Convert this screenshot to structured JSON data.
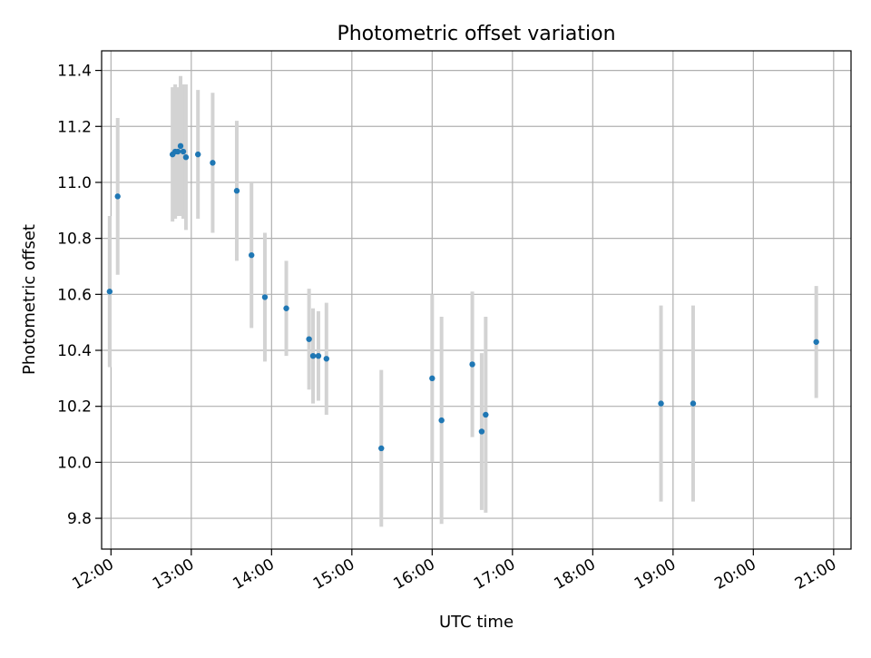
{
  "chart_data": {
    "type": "scatter",
    "title": "Photometric offset variation",
    "xlabel": "UTC time",
    "ylabel": "Photometric offset",
    "x_ticks": [
      "12:00",
      "13:00",
      "14:00",
      "15:00",
      "16:00",
      "17:00",
      "18:00",
      "19:00",
      "20:00",
      "21:00"
    ],
    "y_ticks": [
      "9.8",
      "10.0",
      "10.2",
      "10.4",
      "10.6",
      "10.8",
      "11.0",
      "11.2",
      "11.4"
    ],
    "xlim": [
      "11:53",
      "21:13"
    ],
    "ylim": [
      9.69,
      11.47
    ],
    "grid": true,
    "colors": {
      "point": "#1f77b4",
      "errorbar": "#d3d3d3",
      "grid": "#b0b0b0"
    },
    "series": [
      {
        "points": [
          {
            "t": "11:59",
            "y": 10.61,
            "err": 0.27
          },
          {
            "t": "12:05",
            "y": 10.95,
            "err": 0.28
          },
          {
            "t": "12:46",
            "y": 11.1,
            "err": 0.24
          },
          {
            "t": "12:48",
            "y": 11.11,
            "err": 0.24
          },
          {
            "t": "12:50",
            "y": 11.11,
            "err": 0.23
          },
          {
            "t": "12:52",
            "y": 11.13,
            "err": 0.25
          },
          {
            "t": "12:54",
            "y": 11.11,
            "err": 0.24
          },
          {
            "t": "12:56",
            "y": 11.09,
            "err": 0.26
          },
          {
            "t": "13:05",
            "y": 11.1,
            "err": 0.23
          },
          {
            "t": "13:16",
            "y": 11.07,
            "err": 0.25
          },
          {
            "t": "13:34",
            "y": 10.97,
            "err": 0.25
          },
          {
            "t": "13:45",
            "y": 10.74,
            "err": 0.26
          },
          {
            "t": "13:55",
            "y": 10.59,
            "err": 0.23
          },
          {
            "t": "14:11",
            "y": 10.55,
            "err": 0.17
          },
          {
            "t": "14:28",
            "y": 10.44,
            "err": 0.18
          },
          {
            "t": "14:31",
            "y": 10.38,
            "err": 0.17
          },
          {
            "t": "14:35",
            "y": 10.38,
            "err": 0.16
          },
          {
            "t": "14:41",
            "y": 10.37,
            "err": 0.2
          },
          {
            "t": "15:22",
            "y": 10.05,
            "err": 0.28
          },
          {
            "t": "16:00",
            "y": 10.3,
            "err": 0.3
          },
          {
            "t": "16:07",
            "y": 10.15,
            "err": 0.37
          },
          {
            "t": "16:30",
            "y": 10.35,
            "err": 0.26
          },
          {
            "t": "16:37",
            "y": 10.11,
            "err": 0.28
          },
          {
            "t": "16:40",
            "y": 10.17,
            "err": 0.35
          },
          {
            "t": "18:51",
            "y": 10.21,
            "err": 0.35
          },
          {
            "t": "19:15",
            "y": 10.21,
            "err": 0.35
          },
          {
            "t": "20:47",
            "y": 10.43,
            "err": 0.2
          }
        ]
      }
    ]
  }
}
